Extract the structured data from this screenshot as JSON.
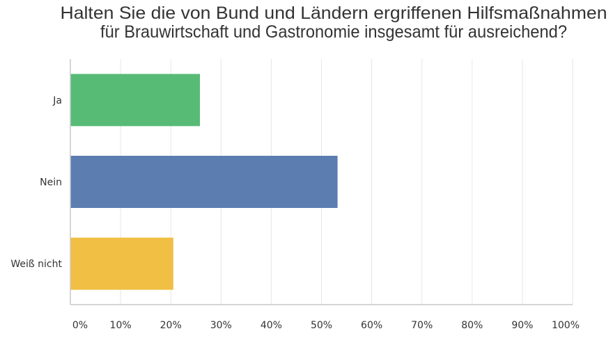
{
  "chart_data": {
    "type": "bar",
    "orientation": "horizontal",
    "title": [
      "Halten Sie die von Bund und Ländern ergriffenen Hilfsmaßnahmen",
      "für Brauwirtschaft und Gastronomie insgesamt für ausreichend?"
    ],
    "categories": [
      "Ja",
      "Nein",
      "Weiß nicht"
    ],
    "values": [
      25.8,
      53.2,
      20.5
    ],
    "colors": [
      "#57bb76",
      "#5b7db0",
      "#f0bf43"
    ],
    "xlabel": "",
    "ylabel": "",
    "xlim": [
      0,
      100
    ],
    "xticks": [
      "0%",
      "10%",
      "20%",
      "30%",
      "40%",
      "50%",
      "60%",
      "70%",
      "80%",
      "90%",
      "100%"
    ],
    "grid": true,
    "legend": "none"
  }
}
